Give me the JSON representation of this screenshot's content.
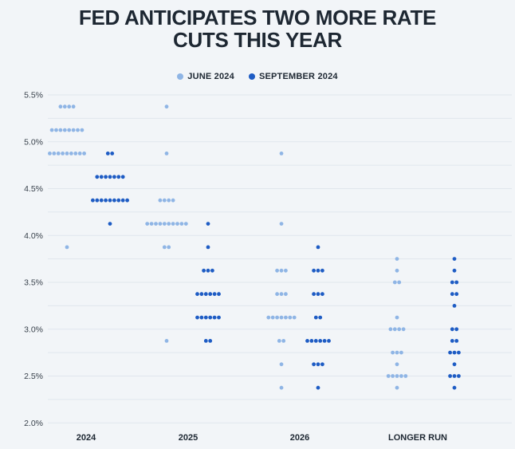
{
  "title": {
    "line1": "FED ANTICIPATES TWO MORE RATE",
    "line2": "CUTS THIS YEAR"
  },
  "chart_data": {
    "type": "scatter",
    "subtype": "fed-dot-plot",
    "title": "FED ANTICIPATES TWO MORE RATE CUTS THIS YEAR",
    "legend_position": "top-center",
    "grid": "horizontal-only",
    "y_axis": {
      "unit": "%",
      "min": 2.0,
      "max": 5.5,
      "grid_step": 0.25,
      "tick_values": [
        5.5,
        5.0,
        4.5,
        4.0,
        3.5,
        3.0,
        2.5,
        2.0
      ],
      "tick_labels": [
        "5.5%",
        "5.0%",
        "4.5%",
        "4.0%",
        "3.5%",
        "3.0%",
        "2.5%",
        "2.0%"
      ]
    },
    "x_axis": {
      "categories": [
        "2024",
        "2025",
        "2026",
        "LONGER RUN"
      ]
    },
    "series": [
      {
        "name": "JUNE 2024",
        "color": "#8fb5e5",
        "dots": {
          "2024": {
            "5.375": 4,
            "5.125": 8,
            "4.875": 9,
            "3.875": 1
          },
          "2025": {
            "5.375": 1,
            "4.875": 1,
            "4.375": 4,
            "4.125": 10,
            "3.875": 2,
            "2.875": 1
          },
          "2026": {
            "4.875": 1,
            "4.125": 1,
            "3.625": 3,
            "3.375": 3,
            "3.125": 7,
            "2.875": 2,
            "2.625": 1,
            "2.375": 1
          },
          "LONGER RUN": {
            "3.75": 1,
            "3.625": 1,
            "3.5": 2,
            "3.125": 1,
            "3.0": 4,
            "2.75": 3,
            "2.625": 1,
            "2.5": 5,
            "2.375": 1
          }
        }
      },
      {
        "name": "SEPTEMBER 2024",
        "color": "#1e5cc4",
        "dots": {
          "2024": {
            "4.875": 2,
            "4.625": 7,
            "4.375": 9,
            "4.125": 1
          },
          "2025": {
            "4.125": 1,
            "3.875": 1,
            "3.625": 3,
            "3.375": 6,
            "3.125": 6,
            "2.875": 2
          },
          "2026": {
            "3.875": 1,
            "3.625": 3,
            "3.375": 3,
            "3.125": 2,
            "2.875": 6,
            "2.625": 3,
            "2.375": 1
          },
          "LONGER RUN": {
            "3.75": 1,
            "3.625": 1,
            "3.5": 2,
            "3.375": 2,
            "3.25": 1,
            "3.0": 2,
            "2.875": 2,
            "2.75": 3,
            "2.625": 1,
            "2.5": 3,
            "2.375": 1
          }
        }
      }
    ]
  }
}
